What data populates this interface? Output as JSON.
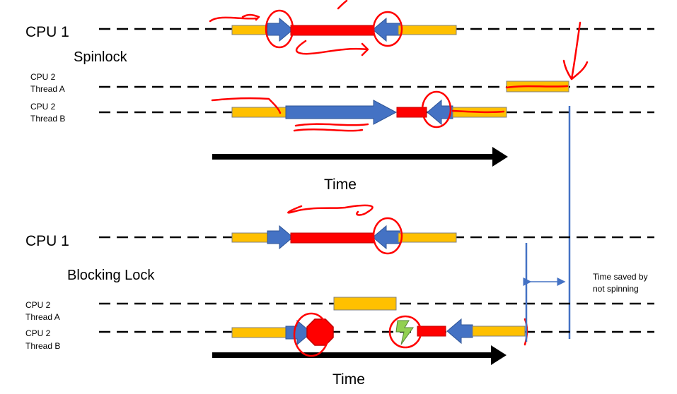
{
  "spinlock": {
    "cpu1": "CPU 1",
    "title": "Spinlock",
    "cpu2a_line1": "CPU 2",
    "cpu2a_line2": "Thread A",
    "cpu2b_line1": "CPU 2",
    "cpu2b_line2": "Thread B",
    "time": "Time"
  },
  "blocking": {
    "cpu1": "CPU 1",
    "title": "Blocking Lock",
    "cpu2a_line1": "CPU 2",
    "cpu2a_line2": "Thread A",
    "cpu2b_line1": "CPU 2",
    "cpu2b_line2": "Thread B",
    "time": "Time"
  },
  "saved": {
    "line1": "Time saved by",
    "line2": "not spinning"
  },
  "colors": {
    "running": "#FFC000",
    "critical": "#FF0000",
    "lock_op": "#4472C4",
    "annotation": "#FF0000"
  }
}
